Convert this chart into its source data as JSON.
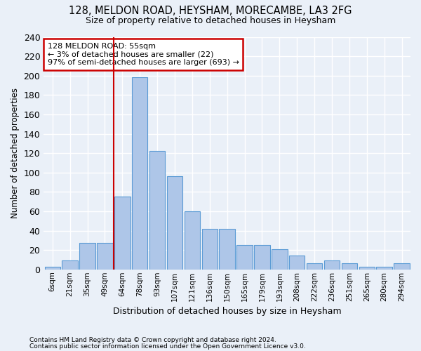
{
  "title": "128, MELDON ROAD, HEYSHAM, MORECAMBE, LA3 2FG",
  "subtitle": "Size of property relative to detached houses in Heysham",
  "xlabel": "Distribution of detached houses by size in Heysham",
  "ylabel": "Number of detached properties",
  "footer_line1": "Contains HM Land Registry data © Crown copyright and database right 2024.",
  "footer_line2": "Contains public sector information licensed under the Open Government Licence v3.0.",
  "bin_labels": [
    "6sqm",
    "21sqm",
    "35sqm",
    "49sqm",
    "64sqm",
    "78sqm",
    "93sqm",
    "107sqm",
    "121sqm",
    "136sqm",
    "150sqm",
    "165sqm",
    "179sqm",
    "193sqm",
    "208sqm",
    "222sqm",
    "236sqm",
    "251sqm",
    "265sqm",
    "280sqm",
    "294sqm"
  ],
  "bar_values": [
    3,
    9,
    27,
    27,
    75,
    198,
    122,
    96,
    60,
    42,
    42,
    25,
    25,
    21,
    14,
    6,
    9,
    6,
    3,
    3,
    6
  ],
  "bar_color": "#aec6e8",
  "bar_edge_color": "#5b9bd5",
  "red_line_x": 3.5,
  "annotation_text": "128 MELDON ROAD: 55sqm\n← 3% of detached houses are smaller (22)\n97% of semi-detached houses are larger (693) →",
  "annotation_box_color": "#ffffff",
  "annotation_box_edge_color": "#cc0000",
  "bg_color": "#eaf0f8",
  "grid_color": "#ffffff",
  "ylim": [
    0,
    240
  ],
  "yticks": [
    0,
    20,
    40,
    60,
    80,
    100,
    120,
    140,
    160,
    180,
    200,
    220,
    240
  ]
}
